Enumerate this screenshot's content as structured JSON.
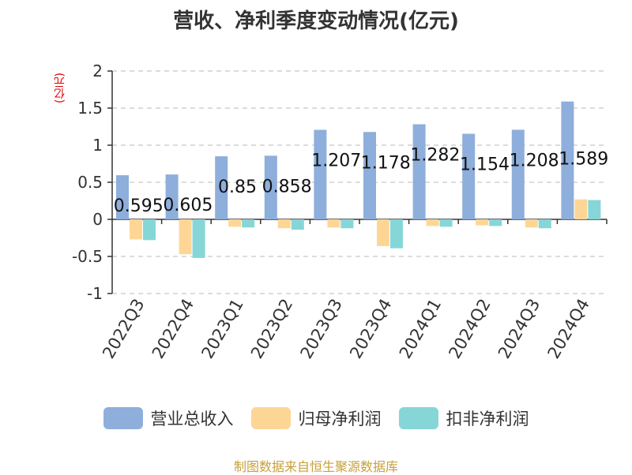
{
  "chart_data": {
    "type": "bar",
    "title": "营收、净利季度变动情况(亿元)",
    "ylabel": "(亿元)",
    "ylim": [
      -1,
      2
    ],
    "yticks": [
      -1,
      -0.5,
      0,
      0.5,
      1,
      1.5,
      2
    ],
    "ytick_labels": [
      "-1",
      "-0.5",
      "0",
      "0.5",
      "1",
      "1.5",
      "2"
    ],
    "grid": true,
    "legend_position": "bottom",
    "categories": [
      "2022Q3",
      "2022Q4",
      "2023Q1",
      "2023Q2",
      "2023Q3",
      "2023Q4",
      "2024Q1",
      "2024Q2",
      "2024Q3",
      "2024Q4"
    ],
    "series": [
      {
        "name": "营业总收入",
        "color": "#8eaedb",
        "values": [
          0.595,
          0.605,
          0.85,
          0.858,
          1.207,
          1.178,
          1.282,
          1.154,
          1.208,
          1.589
        ],
        "labels": [
          "0.595",
          "0.605",
          "0.85",
          "0.858",
          "1.207",
          "1.178",
          "1.282",
          "1.154",
          "1.208",
          "1.589"
        ]
      },
      {
        "name": "归母净利润",
        "color": "#fdd696",
        "values": [
          -0.27,
          -0.47,
          -0.1,
          -0.12,
          -0.11,
          -0.36,
          -0.09,
          -0.08,
          -0.11,
          0.27
        ]
      },
      {
        "name": "扣非净利润",
        "color": "#86d6d8",
        "values": [
          -0.28,
          -0.52,
          -0.11,
          -0.14,
          -0.12,
          -0.39,
          -0.1,
          -0.09,
          -0.12,
          0.26
        ]
      }
    ]
  },
  "footer": {
    "source": "制图数据来自恒生聚源数据库"
  }
}
